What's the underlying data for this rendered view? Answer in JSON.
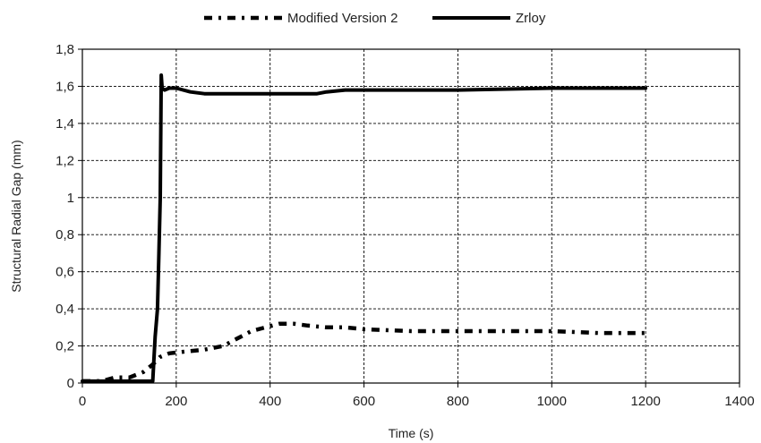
{
  "chart_data": {
    "type": "line",
    "title": "",
    "xlabel": "Time (s)",
    "ylabel": "Structural Radial Gap (mm)",
    "xlim": [
      0,
      1400
    ],
    "ylim": [
      0,
      1.8
    ],
    "x_ticks": [
      0,
      200,
      400,
      600,
      800,
      1000,
      1200,
      1400
    ],
    "y_ticks": [
      0,
      0.2,
      0.4,
      0.6,
      0.8,
      1.0,
      1.2,
      1.4,
      1.6,
      1.8
    ],
    "x_tick_labels": [
      "0",
      "200",
      "400",
      "600",
      "800",
      "1000",
      "1200",
      "1400"
    ],
    "y_tick_labels": [
      "0",
      "0,2",
      "0,4",
      "0,6",
      "0,8",
      "1",
      "1,2",
      "1,4",
      "1,6",
      "1,8"
    ],
    "grid": true,
    "legend_position": "top",
    "series": [
      {
        "name": "Modified Version 2",
        "style": "dash-dot",
        "color": "#000000",
        "x": [
          0,
          40,
          70,
          100,
          130,
          150,
          165,
          185,
          220,
          260,
          300,
          330,
          360,
          390,
          420,
          450,
          480,
          520,
          560,
          600,
          700,
          800,
          900,
          1000,
          1100,
          1200
        ],
        "y": [
          0.01,
          0.01,
          0.03,
          0.03,
          0.06,
          0.1,
          0.14,
          0.16,
          0.17,
          0.18,
          0.2,
          0.24,
          0.28,
          0.3,
          0.32,
          0.32,
          0.31,
          0.3,
          0.3,
          0.29,
          0.28,
          0.28,
          0.28,
          0.28,
          0.27,
          0.27
        ]
      },
      {
        "name": "Zrloy",
        "style": "solid",
        "color": "#000000",
        "x": [
          0,
          140,
          150,
          155,
          160,
          163,
          166,
          168,
          170,
          175,
          185,
          200,
          230,
          260,
          300,
          400,
          500,
          520,
          560,
          600,
          800,
          1000,
          1200
        ],
        "y": [
          0.01,
          0.01,
          0.01,
          0.25,
          0.4,
          0.7,
          1.0,
          1.66,
          1.59,
          1.58,
          1.59,
          1.59,
          1.57,
          1.56,
          1.56,
          1.56,
          1.56,
          1.57,
          1.58,
          1.58,
          1.58,
          1.59,
          1.59
        ]
      }
    ]
  }
}
